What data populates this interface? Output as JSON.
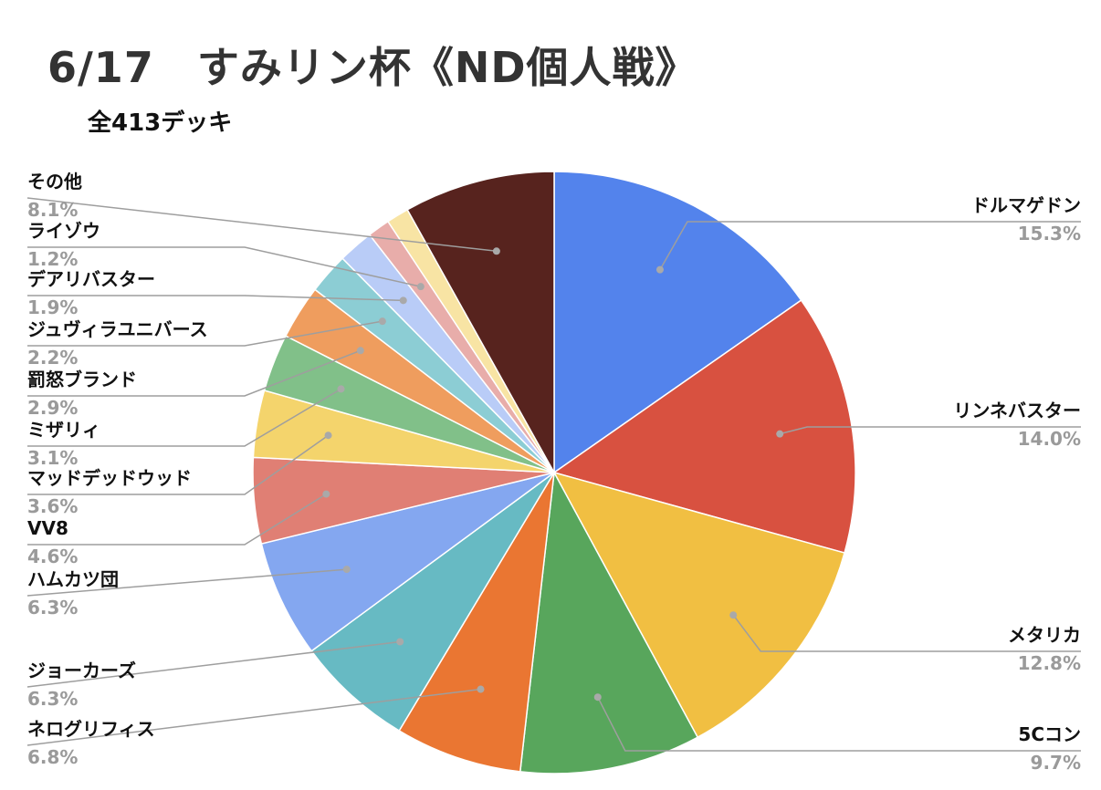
{
  "title": "6/17　すみリン杯《ND個人戦》",
  "subtitle": "全413デッキ",
  "chart_data": {
    "type": "pie",
    "title": "6/17　すみリン杯《ND個人戦》",
    "subtitle": "全413デッキ",
    "slices": [
      {
        "label": "ドルマゲドン",
        "value": 15.3,
        "pct_text": "15.3%",
        "color": "#5383EC"
      },
      {
        "label": "リンネバスター",
        "value": 14.0,
        "pct_text": "14.0%",
        "color": "#D85140"
      },
      {
        "label": "メタリカ",
        "value": 12.8,
        "pct_text": "12.8%",
        "color": "#F1BF42"
      },
      {
        "label": "5Cコン",
        "value": 9.7,
        "pct_text": "9.7%",
        "color": "#58A65C"
      },
      {
        "label": "ネログリフィス",
        "value": 6.8,
        "pct_text": "6.8%",
        "color": "#EA7632"
      },
      {
        "label": "ジョーカーズ",
        "value": 6.3,
        "pct_text": "6.3%",
        "color": "#67BAC3"
      },
      {
        "label": "ハムカツ団",
        "value": 6.3,
        "pct_text": "6.3%",
        "color": "#84A7F0"
      },
      {
        "label": "VV8",
        "value": 4.6,
        "pct_text": "4.6%",
        "color": "#E07F74"
      },
      {
        "label": "マッドデッドウッド",
        "value": 3.6,
        "pct_text": "3.6%",
        "color": "#F4D46C"
      },
      {
        "label": "ミザリィ",
        "value": 3.1,
        "pct_text": "3.1%",
        "color": "#81C089"
      },
      {
        "label": "罰怒ブランド",
        "value": 2.9,
        "pct_text": "2.9%",
        "color": "#EF9D5E"
      },
      {
        "label": "ジュヴィラユニバース",
        "value": 2.2,
        "pct_text": "2.2%",
        "color": "#8CCDD4"
      },
      {
        "label": "デアリバスター",
        "value": 1.9,
        "pct_text": "1.9%",
        "color": "#B9CCF7"
      },
      {
        "label": "ライゾウ",
        "value": 1.2,
        "pct_text": "1.2%",
        "color": "#E8ADAA"
      },
      {
        "label": "その他",
        "value": 8.1,
        "pct_text": "8.1%",
        "color": "#57231E"
      }
    ],
    "other_small_slice": {
      "value": 1.2,
      "color": "#F8E4A4"
    },
    "start_angle": "12 o'clock",
    "direction": "clockwise",
    "legend": "none"
  }
}
